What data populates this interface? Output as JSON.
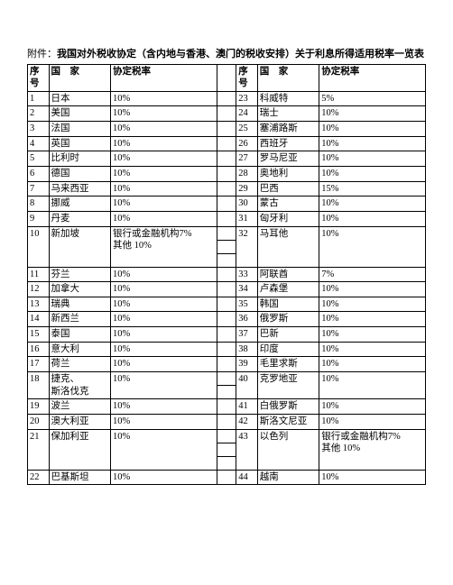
{
  "title": {
    "prefix": "附件：",
    "bold": "我国对外税收协定（含内地与香港、澳门的税收安排）关于利息所得适用税率一览表"
  },
  "headers": {
    "seq": "序号",
    "country": "国　家",
    "rate": "协定税率"
  },
  "special_rate_multi": "银行或金融机构\n7%\n其他 10%",
  "left": [
    {
      "n": "1",
      "c": "日本",
      "r": "10%"
    },
    {
      "n": "2",
      "c": "美国",
      "r": "10%"
    },
    {
      "n": "3",
      "c": "法国",
      "r": "10%"
    },
    {
      "n": "4",
      "c": "英国",
      "r": "10%"
    },
    {
      "n": "5",
      "c": "比利时",
      "r": "10%"
    },
    {
      "n": "6",
      "c": "德国",
      "r": "10%"
    },
    {
      "n": "7",
      "c": "马来西亚",
      "r": "10%"
    },
    {
      "n": "8",
      "c": "挪威",
      "r": "10%"
    },
    {
      "n": "9",
      "c": "丹麦",
      "r": "10%"
    },
    {
      "n": "10",
      "c": "新加坡",
      "r": "银行或金融机构7%\n其他 10%"
    },
    {
      "n": "11",
      "c": "芬兰",
      "r": "10%"
    },
    {
      "n": "12",
      "c": "加拿大",
      "r": "10%"
    },
    {
      "n": "13",
      "c": "瑞典",
      "r": "10%"
    },
    {
      "n": "14",
      "c": "新西兰",
      "r": "10%"
    },
    {
      "n": "15",
      "c": "泰国",
      "r": "10%"
    },
    {
      "n": "16",
      "c": "意大利",
      "r": "10%"
    },
    {
      "n": "17",
      "c": "荷兰",
      "r": "10%"
    },
    {
      "n": "18",
      "c": "捷克、\n斯洛伐克",
      "r": "10%"
    },
    {
      "n": "19",
      "c": "波兰",
      "r": "10%"
    },
    {
      "n": "20",
      "c": "澳大利亚",
      "r": "10%"
    },
    {
      "n": "21",
      "c": "保加利亚",
      "r": "10%"
    },
    {
      "n": "22",
      "c": "巴基斯坦",
      "r": "10%"
    }
  ],
  "right": [
    {
      "n": "23",
      "c": "科威特",
      "r": "5%"
    },
    {
      "n": "24",
      "c": "瑞士",
      "r": "10%"
    },
    {
      "n": "25",
      "c": "塞浦路斯",
      "r": "10%"
    },
    {
      "n": "26",
      "c": "西班牙",
      "r": "10%"
    },
    {
      "n": "27",
      "c": "罗马尼亚",
      "r": "10%"
    },
    {
      "n": "28",
      "c": "奥地利",
      "r": "10%"
    },
    {
      "n": "29",
      "c": "巴西",
      "r": "15%"
    },
    {
      "n": "30",
      "c": "蒙古",
      "r": "10%"
    },
    {
      "n": "31",
      "c": "匈牙利",
      "r": "10%"
    },
    {
      "n": "32",
      "c": "马耳他",
      "r": "10%"
    },
    {
      "n": "33",
      "c": "阿联酋",
      "r": "7%"
    },
    {
      "n": "34",
      "c": "卢森堡",
      "r": "10%"
    },
    {
      "n": "35",
      "c": "韩国",
      "r": "10%"
    },
    {
      "n": "36",
      "c": "俄罗斯",
      "r": "10%"
    },
    {
      "n": "37",
      "c": "巴新",
      "r": "10%"
    },
    {
      "n": "38",
      "c": "印度",
      "r": "10%"
    },
    {
      "n": "39",
      "c": "毛里求斯",
      "r": "10%"
    },
    {
      "n": "40",
      "c": "克罗地亚",
      "r": "10%"
    },
    {
      "n": "41",
      "c": "白俄罗斯",
      "r": "10%"
    },
    {
      "n": "42",
      "c": "斯洛文尼亚",
      "r": "10%"
    },
    {
      "n": "43",
      "c": "以色列",
      "r": "银行或金融机构7%\n其他 10%"
    },
    {
      "n": "44",
      "c": "越南",
      "r": "10%"
    }
  ],
  "row_map": [
    [
      0,
      0
    ],
    [
      1,
      1
    ],
    [
      2,
      2
    ],
    [
      3,
      3
    ],
    [
      4,
      4
    ],
    [
      5,
      5
    ],
    [
      6,
      6
    ],
    [
      7,
      7
    ],
    [
      8,
      8
    ],
    [
      9,
      9
    ],
    [
      9,
      -1
    ],
    [
      9,
      -1
    ],
    [
      10,
      10
    ],
    [
      11,
      11
    ],
    [
      12,
      12
    ],
    [
      13,
      13
    ],
    [
      14,
      14
    ],
    [
      15,
      15
    ],
    [
      16,
      16
    ],
    [
      17,
      17
    ],
    [
      17,
      -1
    ],
    [
      18,
      18
    ],
    [
      19,
      19
    ],
    [
      20,
      20
    ],
    [
      20,
      -1
    ],
    [
      20,
      -1
    ],
    [
      21,
      21
    ]
  ],
  "left_spans": {
    "9": 3,
    "17": 2,
    "20": 3
  },
  "right_spans": {
    "9": 3,
    "17": 2,
    "20": 3
  }
}
